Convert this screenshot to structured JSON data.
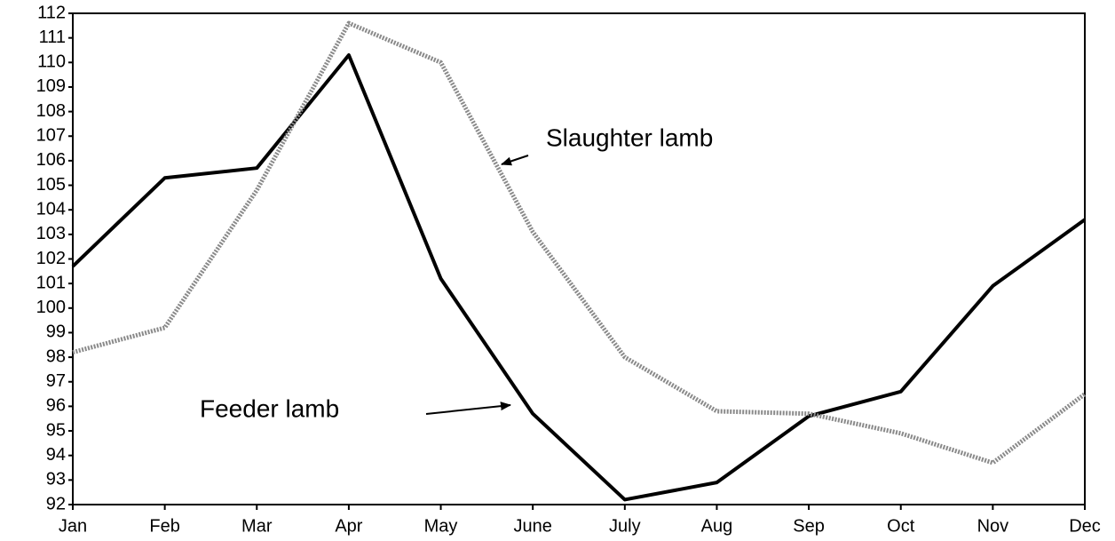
{
  "chart_data": {
    "type": "line",
    "categories": [
      "Jan",
      "Feb",
      "Mar",
      "Apr",
      "May",
      "June",
      "July",
      "Aug",
      "Sep",
      "Oct",
      "Nov",
      "Dec"
    ],
    "series": [
      {
        "name": "Feeder lamb",
        "color": "#000000",
        "style": "solid",
        "values": [
          101.7,
          105.3,
          105.7,
          110.3,
          101.2,
          95.7,
          92.2,
          92.9,
          95.6,
          96.6,
          100.9,
          103.6
        ]
      },
      {
        "name": "Slaughter lamb",
        "color": "#8a8a8a",
        "style": "dotted",
        "values": [
          98.2,
          99.2,
          104.8,
          111.6,
          110.0,
          103.1,
          98.0,
          95.8,
          95.7,
          94.9,
          93.7,
          96.5
        ]
      }
    ],
    "ylim": [
      92,
      112
    ],
    "yticks": [
      92,
      93,
      94,
      95,
      96,
      97,
      98,
      99,
      100,
      101,
      102,
      103,
      104,
      105,
      106,
      107,
      108,
      109,
      110,
      111,
      112
    ],
    "grid": false
  }
}
